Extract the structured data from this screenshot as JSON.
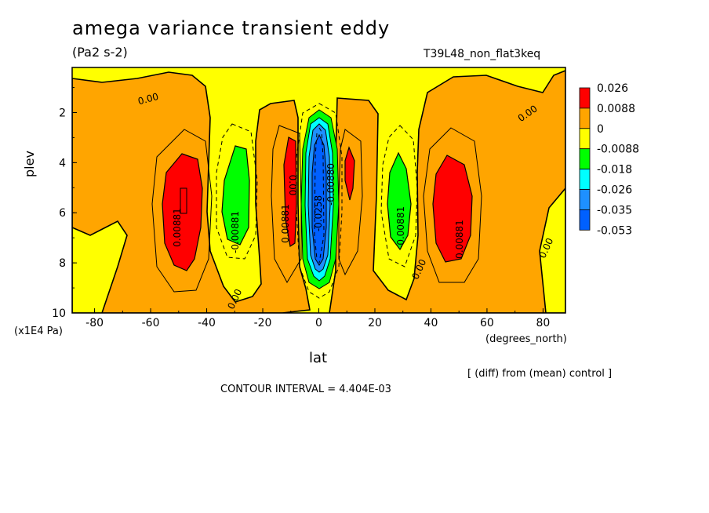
{
  "chart_data": {
    "type": "heatmap",
    "title": "amega variance transient eddy",
    "units": "(Pa2 s-2)",
    "run_label": "T39L48_non_flat3keq",
    "xlabel": "lat",
    "x_unit": "(degrees_north)",
    "ylabel": "plev",
    "y_unit": "(x1E4 Pa)",
    "xlim": [
      -88,
      88
    ],
    "ylim": [
      10,
      0.2
    ],
    "x_ticks": [
      "-80",
      "-60",
      "-40",
      "-20",
      "0",
      "20",
      "40",
      "60",
      "80"
    ],
    "y_ticks": [
      "2",
      "4",
      "6",
      "8",
      "10"
    ],
    "legend": {
      "labels": [
        "0.026",
        "0.0088",
        "0",
        "-0.0088",
        "-0.018",
        "-0.026",
        "-0.035",
        "-0.053"
      ],
      "colors": [
        "#ff0000",
        "#ffa500",
        "#ffff00",
        "#00ff00",
        "#00ffff",
        "#1e90ff",
        "#0060ff"
      ]
    },
    "contour_labels": [
      "0.00",
      "0.00",
      "0.00",
      "0.00",
      "0.00",
      "0.00",
      "0.00881",
      "-0.00881",
      "0.00881",
      "-0.0258",
      "-0.00880",
      "-0.00881",
      "0.00881"
    ],
    "contour_interval": "CONTOUR INTERVAL = 4.404E-03",
    "comparison_note": "[ (diff) from (mean) control ]"
  }
}
